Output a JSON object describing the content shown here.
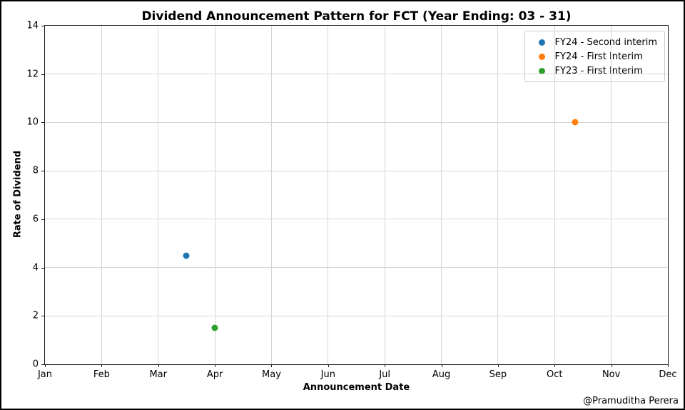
{
  "attribution": "@Pramuditha Perera",
  "chart_data": {
    "type": "scatter",
    "title": "Dividend Announcement Pattern for FCT (Year Ending: 03 - 31)",
    "xlabel": "Announcement Date",
    "ylabel": "Rate of Dividend",
    "x_tick_labels": [
      "Jan",
      "Feb",
      "Mar",
      "Apr",
      "May",
      "Jun",
      "Jul",
      "Aug",
      "Sep",
      "Oct",
      "Nov",
      "Dec"
    ],
    "y_ticks": [
      0,
      2,
      4,
      6,
      8,
      10,
      12,
      14
    ],
    "ylim": [
      0,
      14
    ],
    "x_axis_unit": "month index, Jan=0 .. Dec=11",
    "grid": true,
    "legend_position": "upper right",
    "series": [
      {
        "name": "FY24 - Second interim",
        "color": "#1f77b4",
        "marker": "circle",
        "points": [
          {
            "x_month": 2.49,
            "approx_date": "mid-Mar",
            "rate": 4.5
          }
        ]
      },
      {
        "name": "FY24 - First Interim",
        "color": "#ff7f0e",
        "marker": "circle",
        "points": [
          {
            "x_month": 9.36,
            "approx_date": "~Oct 12",
            "rate": 10.0
          }
        ]
      },
      {
        "name": "FY23 - First Interim",
        "color": "#2ca02c",
        "marker": "circle",
        "points": [
          {
            "x_month": 3.0,
            "approx_date": "~Apr 1",
            "rate": 1.5
          }
        ]
      }
    ]
  }
}
